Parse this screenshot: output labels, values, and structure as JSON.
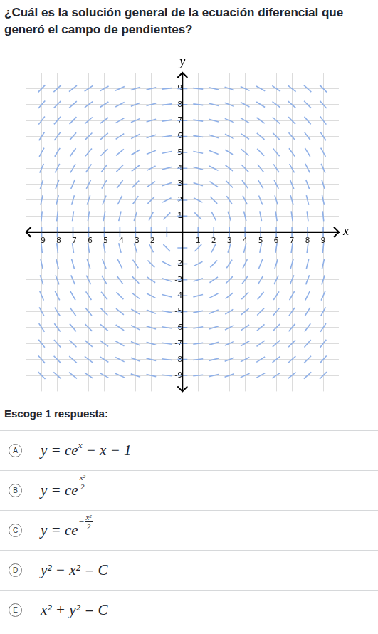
{
  "question": "¿Cuál es la solución general de la ecuación diferencial que generó el campo de pendientes?",
  "chart_data": {
    "type": "slope_field",
    "x_label": "x",
    "y_label": "y",
    "xlim": [
      -10,
      10
    ],
    "ylim": [
      -10,
      10
    ],
    "xticks": [
      -9,
      -8,
      -7,
      -6,
      -5,
      -4,
      -3,
      -2,
      1,
      2,
      3,
      4,
      5,
      6,
      7,
      8,
      9
    ],
    "yticks": [
      -9,
      -8,
      -7,
      -6,
      -5,
      -4,
      -3,
      -2,
      1,
      2,
      3,
      4,
      5,
      6,
      7,
      8,
      9
    ],
    "grid": true,
    "color": "#8fb0e8",
    "x": [
      -9,
      -8,
      -7,
      -6,
      -5,
      -4,
      -3,
      -2,
      -1,
      0,
      1,
      2,
      3,
      4,
      5,
      6,
      7,
      8,
      9
    ],
    "y": [
      9,
      8,
      7,
      6,
      5,
      4,
      3,
      2,
      1,
      0,
      -1,
      -2,
      -3,
      -4,
      -5,
      -6,
      -7,
      -8,
      -9
    ],
    "angles": [
      [
        45,
        42,
        38,
        34,
        29,
        24,
        18,
        13,
        6,
        0,
        -6,
        -13,
        -18,
        -24,
        -29,
        -34,
        -38,
        -42,
        -45
      ],
      [
        48,
        45,
        41,
        37,
        32,
        27,
        21,
        14,
        7,
        0,
        -7,
        -14,
        -21,
        -27,
        -32,
        -37,
        -41,
        -45,
        -48
      ],
      [
        52,
        49,
        45,
        41,
        36,
        30,
        23,
        16,
        8,
        0,
        -8,
        -16,
        -23,
        -30,
        -36,
        -41,
        -45,
        -49,
        -52
      ],
      [
        56,
        53,
        49,
        45,
        40,
        34,
        27,
        18,
        9,
        0,
        -9,
        -18,
        -27,
        -34,
        -40,
        -45,
        -49,
        -53,
        -56
      ],
      [
        61,
        58,
        54,
        50,
        45,
        39,
        31,
        22,
        11,
        0,
        -11,
        -22,
        -31,
        -39,
        -45,
        -50,
        -54,
        -58,
        -61
      ],
      [
        66,
        63,
        60,
        56,
        51,
        45,
        37,
        27,
        14,
        0,
        -14,
        -27,
        -37,
        -45,
        -51,
        -56,
        -60,
        -63,
        -66
      ],
      [
        72,
        69,
        67,
        63,
        59,
        53,
        45,
        34,
        18,
        0,
        -18,
        -34,
        -45,
        -53,
        -59,
        -63,
        -67,
        -69,
        -72
      ],
      [
        77,
        76,
        74,
        72,
        68,
        63,
        56,
        45,
        27,
        0,
        -27,
        -45,
        -56,
        -63,
        -68,
        -72,
        -74,
        -76,
        -77
      ],
      [
        84,
        83,
        82,
        81,
        79,
        76,
        72,
        63,
        45,
        0,
        -45,
        -63,
        -72,
        -76,
        -79,
        -81,
        -82,
        -83,
        -84
      ],
      [
        90,
        90,
        90,
        90,
        90,
        90,
        90,
        90,
        90,
        null,
        90,
        90,
        90,
        90,
        90,
        90,
        90,
        90,
        90
      ],
      [
        -84,
        -83,
        -82,
        -81,
        -79,
        -76,
        -72,
        -63,
        -45,
        0,
        45,
        63,
        72,
        76,
        79,
        81,
        82,
        83,
        84
      ],
      [
        -77,
        -76,
        -74,
        -72,
        -68,
        -63,
        -56,
        -45,
        -27,
        0,
        27,
        45,
        56,
        63,
        68,
        72,
        74,
        76,
        77
      ],
      [
        -72,
        -69,
        -67,
        -63,
        -59,
        -53,
        -45,
        -34,
        -18,
        0,
        18,
        34,
        45,
        53,
        59,
        63,
        67,
        69,
        72
      ],
      [
        -66,
        -63,
        -60,
        -56,
        -51,
        -45,
        -37,
        -27,
        -14,
        0,
        14,
        27,
        37,
        45,
        51,
        56,
        60,
        63,
        66
      ],
      [
        -61,
        -58,
        -54,
        -50,
        -45,
        -39,
        -31,
        -22,
        -11,
        0,
        11,
        22,
        31,
        39,
        45,
        50,
        54,
        58,
        61
      ],
      [
        -56,
        -53,
        -49,
        -45,
        -40,
        -34,
        -27,
        -18,
        -9,
        0,
        9,
        18,
        27,
        34,
        40,
        45,
        49,
        53,
        56
      ],
      [
        -52,
        -49,
        -45,
        -41,
        -36,
        -30,
        -23,
        -16,
        -8,
        0,
        8,
        16,
        23,
        30,
        36,
        41,
        45,
        49,
        52
      ],
      [
        -48,
        -45,
        -41,
        -37,
        -32,
        -27,
        -21,
        -14,
        -7,
        0,
        7,
        14,
        21,
        27,
        32,
        37,
        41,
        45,
        48
      ],
      [
        -45,
        -42,
        -38,
        -34,
        -29,
        -24,
        -18,
        -13,
        -6,
        0,
        6,
        13,
        18,
        24,
        29,
        34,
        38,
        42,
        45
      ]
    ]
  },
  "prompt": "Escoge 1 respuesta:",
  "choices": [
    {
      "letter": "A",
      "parts": [
        {
          "t": "y = ce"
        },
        {
          "sup": [
            "x"
          ]
        },
        {
          "t": " − x − 1"
        }
      ]
    },
    {
      "letter": "B",
      "parts": [
        {
          "t": "y = ce"
        },
        {
          "sup": [
            {
              "num": "x²",
              "den": "2"
            }
          ]
        }
      ]
    },
    {
      "letter": "C",
      "parts": [
        {
          "t": "y = ce"
        },
        {
          "sup": [
            "−",
            {
              "num": "x²",
              "den": "2"
            }
          ]
        }
      ]
    },
    {
      "letter": "D",
      "parts": [
        {
          "t": "y² − x² = C"
        }
      ]
    },
    {
      "letter": "E",
      "parts": [
        {
          "t": "x² + y² = C"
        }
      ]
    }
  ]
}
